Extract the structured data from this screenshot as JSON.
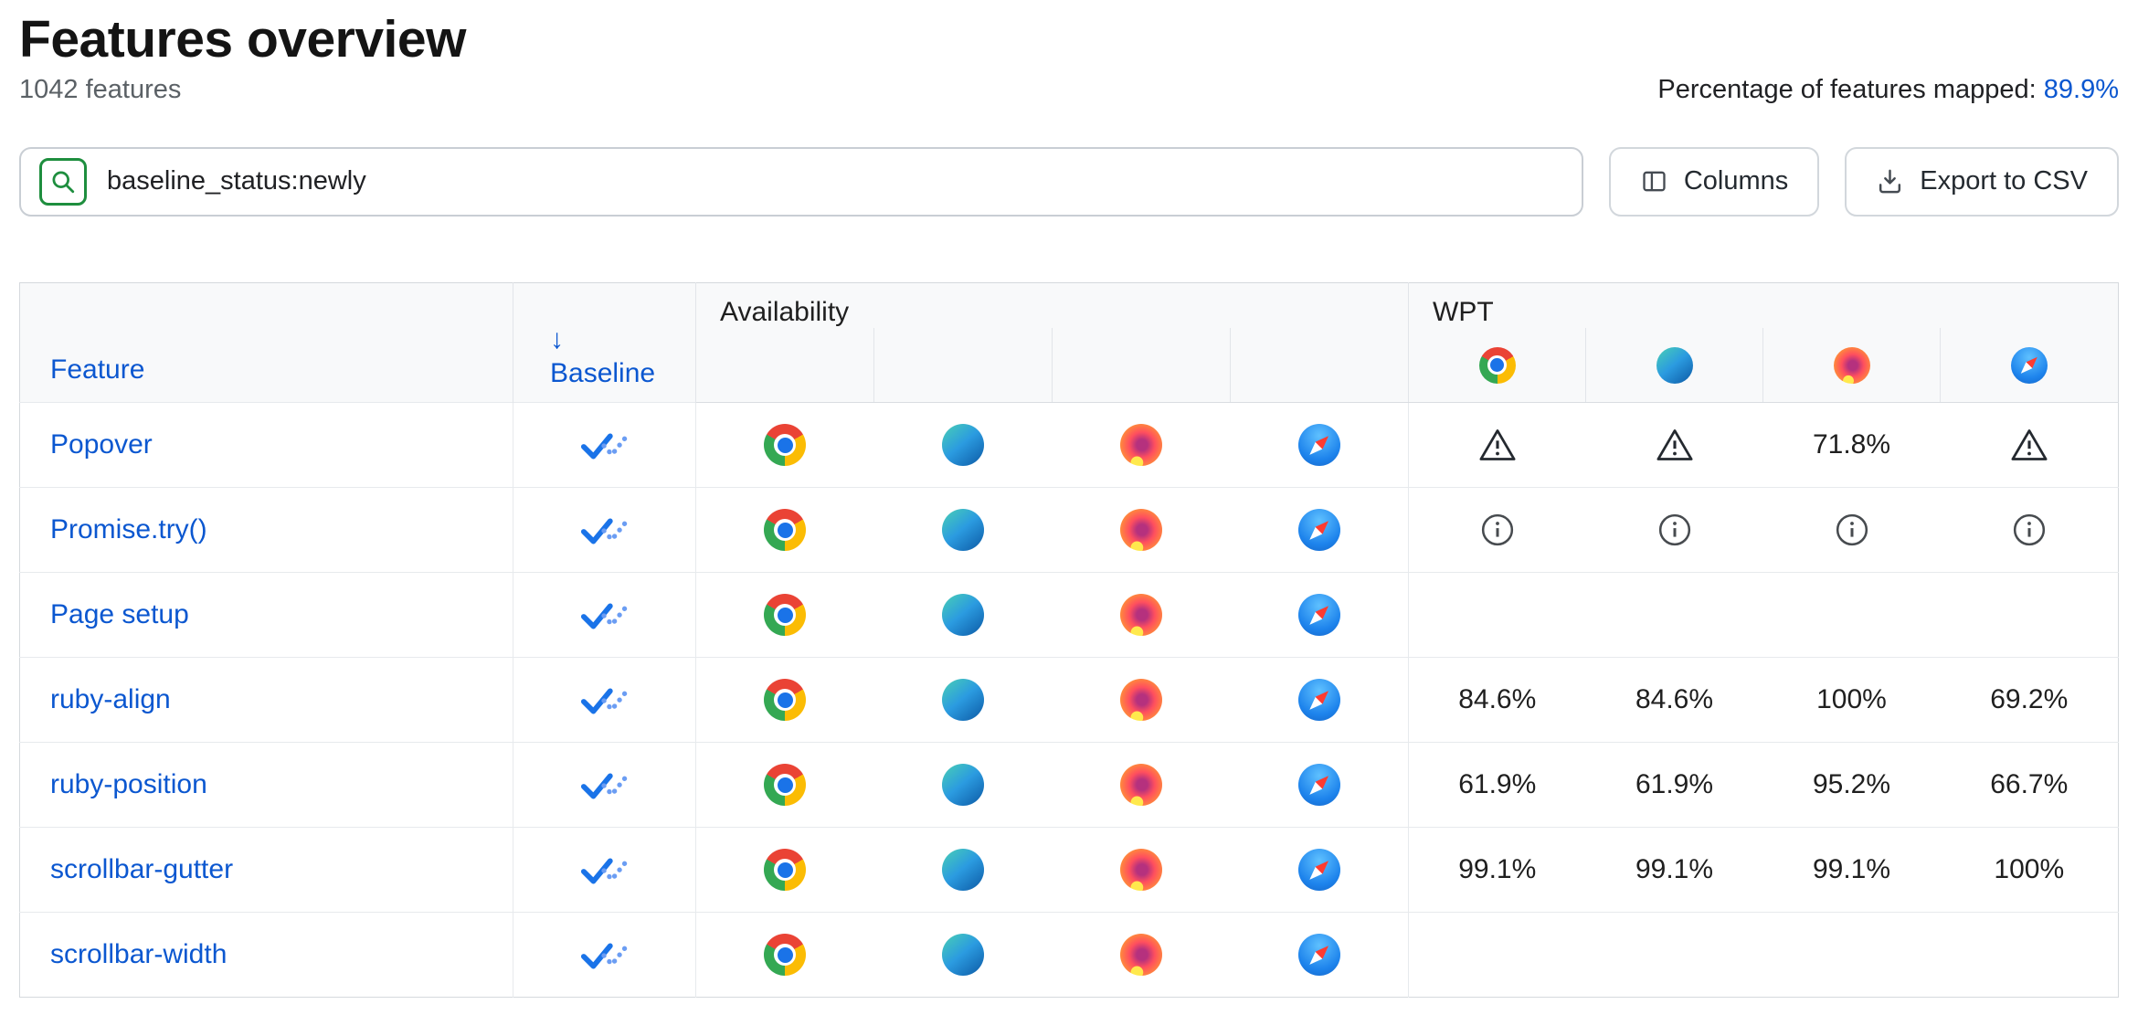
{
  "header": {
    "title": "Features overview",
    "feature_count": "1042 features",
    "mapped_label": "Percentage of features mapped:",
    "mapped_value": "89.9%"
  },
  "toolbar": {
    "search_value": "baseline_status:newly",
    "search_icon": "magnifier-icon",
    "columns_label": "Columns",
    "export_label": "Export to CSV"
  },
  "table": {
    "feature_header": "Feature",
    "baseline_header": "Baseline",
    "sort_arrow": "↓",
    "availability_header": "Availability",
    "wpt_header": "WPT",
    "wpt_browser_icons": [
      "chrome",
      "edge",
      "firefox",
      "safari"
    ],
    "baseline_status_icon": "baseline-newly-icon",
    "rows": [
      {
        "feature": "Popover",
        "baseline": "newly",
        "availability": [
          "chrome",
          "edge",
          "firefox",
          "safari"
        ],
        "wpt": [
          {
            "type": "warning"
          },
          {
            "type": "warning"
          },
          {
            "type": "percent",
            "value": "71.8%"
          },
          {
            "type": "warning"
          }
        ]
      },
      {
        "feature": "Promise.try()",
        "baseline": "newly",
        "availability": [
          "chrome",
          "edge",
          "firefox",
          "safari"
        ],
        "wpt": [
          {
            "type": "info"
          },
          {
            "type": "info"
          },
          {
            "type": "info"
          },
          {
            "type": "info"
          }
        ]
      },
      {
        "feature": "Page setup",
        "baseline": "newly",
        "availability": [
          "chrome",
          "edge",
          "firefox",
          "safari"
        ],
        "wpt": [
          {
            "type": "empty"
          },
          {
            "type": "empty"
          },
          {
            "type": "empty"
          },
          {
            "type": "empty"
          }
        ]
      },
      {
        "feature": "ruby-align",
        "baseline": "newly",
        "availability": [
          "chrome",
          "edge",
          "firefox",
          "safari"
        ],
        "wpt": [
          {
            "type": "percent",
            "value": "84.6%"
          },
          {
            "type": "percent",
            "value": "84.6%"
          },
          {
            "type": "percent",
            "value": "100%"
          },
          {
            "type": "percent",
            "value": "69.2%"
          }
        ]
      },
      {
        "feature": "ruby-position",
        "baseline": "newly",
        "availability": [
          "chrome",
          "edge",
          "firefox",
          "safari"
        ],
        "wpt": [
          {
            "type": "percent",
            "value": "61.9%"
          },
          {
            "type": "percent",
            "value": "61.9%"
          },
          {
            "type": "percent",
            "value": "95.2%"
          },
          {
            "type": "percent",
            "value": "66.7%"
          }
        ]
      },
      {
        "feature": "scrollbar-gutter",
        "baseline": "newly",
        "availability": [
          "chrome",
          "edge",
          "firefox",
          "safari"
        ],
        "wpt": [
          {
            "type": "percent",
            "value": "99.1%"
          },
          {
            "type": "percent",
            "value": "99.1%"
          },
          {
            "type": "percent",
            "value": "99.1%"
          },
          {
            "type": "percent",
            "value": "100%"
          }
        ]
      },
      {
        "feature": "scrollbar-width",
        "baseline": "newly",
        "availability": [
          "chrome",
          "edge",
          "firefox",
          "safari"
        ],
        "wpt": [
          {
            "type": "empty"
          },
          {
            "type": "empty"
          },
          {
            "type": "empty"
          },
          {
            "type": "empty"
          }
        ]
      }
    ]
  },
  "colors": {
    "link_blue": "#0b57d0",
    "accent_green": "#1e8e3e",
    "header_bg": "#f8f9fa",
    "border": "#e2e5e9"
  }
}
